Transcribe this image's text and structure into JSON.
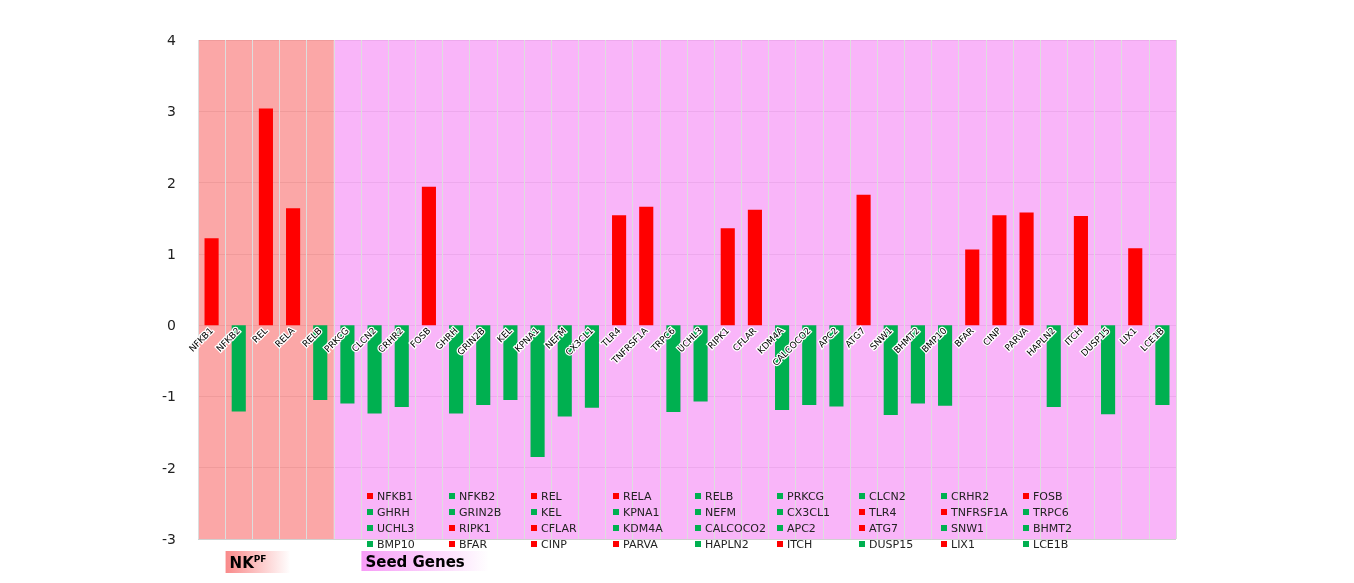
{
  "chart_data": {
    "type": "bar",
    "categories": [
      "NFKB1",
      "NFKB2",
      "REL",
      "RELA",
      "RELB",
      "PRKCG",
      "CLCN2",
      "CRHR2",
      "FOSB",
      "GHRH",
      "GRIN2B",
      "KEL",
      "KPNA1",
      "NEFM",
      "CX3CL1",
      "TLR4",
      "TNFRSF1A",
      "TRPC6",
      "UCHL3",
      "RIPK1",
      "CFLAR",
      "KDM4A",
      "CALCOCO2",
      "APC2",
      "ATG7",
      "SNW1",
      "BHMT2",
      "BMP10",
      "BFAR",
      "CINP",
      "PARVA",
      "HAPLN2",
      "ITCH",
      "DUSP15",
      "LIX1",
      "LCE1B"
    ],
    "values": [
      1.22,
      -1.21,
      3.04,
      1.64,
      -1.05,
      -1.1,
      -1.24,
      -1.15,
      1.94,
      -1.24,
      -1.12,
      -1.05,
      -1.85,
      -1.28,
      -1.16,
      1.54,
      1.66,
      -1.22,
      -1.07,
      1.36,
      1.62,
      -1.19,
      -1.12,
      -1.14,
      1.83,
      -1.26,
      -1.1,
      -1.13,
      1.06,
      1.54,
      1.58,
      -1.15,
      1.53,
      -1.25,
      1.08,
      -1.12
    ],
    "colors": [
      "#ff0000",
      "#00b050",
      "#ff0000",
      "#ff0000",
      "#00b050",
      "#00b050",
      "#00b050",
      "#00b050",
      "#ff0000",
      "#00b050",
      "#00b050",
      "#00b050",
      "#00b050",
      "#00b050",
      "#00b050",
      "#ff0000",
      "#ff0000",
      "#00b050",
      "#00b050",
      "#ff0000",
      "#ff0000",
      "#00b050",
      "#00b050",
      "#00b050",
      "#ff0000",
      "#00b050",
      "#00b050",
      "#00b050",
      "#ff0000",
      "#ff0000",
      "#ff0000",
      "#00b050",
      "#ff0000",
      "#00b050",
      "#ff0000",
      "#00b050"
    ],
    "ylim": [
      -3,
      4
    ],
    "yticks": [
      -3,
      -2,
      -1,
      0,
      1,
      2,
      3,
      4
    ],
    "grid": true,
    "legend": "bottom",
    "bands": [
      {
        "axis": "x",
        "from": "NFKB1",
        "to": "RELB",
        "label": "NK$^{PF}$",
        "color": "#f98a8a"
      },
      {
        "axis": "x",
        "from": "PRKCG",
        "to": "LCE1B",
        "label": "Seed Genes",
        "color": "#f79cf7"
      }
    ]
  }
}
